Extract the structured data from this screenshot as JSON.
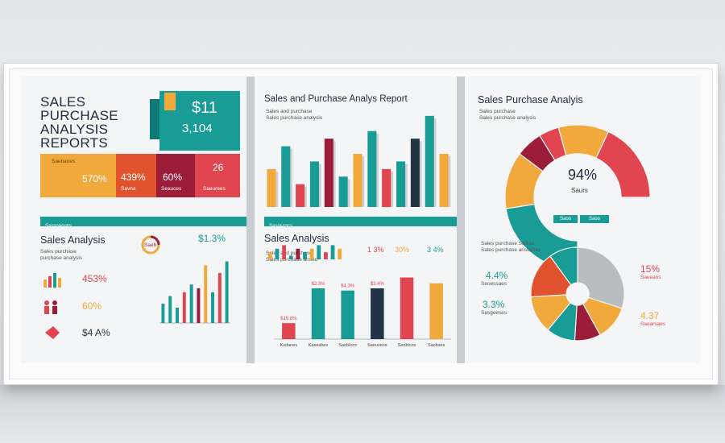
{
  "colors": {
    "teal": "#1a9c96",
    "orange": "#f2a93b",
    "red": "#e04550",
    "maroon": "#9b1d3a",
    "navy": "#243447",
    "gray": "#b9bcbf"
  },
  "panel1": {
    "title_lines": [
      "SALES",
      "PURCHASE",
      "ANALYSIS",
      "REPORTS"
    ],
    "card_big": "$11",
    "card_sub": "3,104",
    "tiles": [
      {
        "value": "570%",
        "label": "Saenaoes"
      },
      {
        "value": "439%",
        "label": "Savna"
      },
      {
        "value": "60%",
        "label": "Seauces"
      },
      {
        "value": "26",
        "label": "Saeurees"
      }
    ],
    "section_strip": "Sassoaoons",
    "sales_title": "Sales Analysis",
    "desc": "Sales purchase\npurchase analysis",
    "rows": [
      {
        "icon": "bar-chart-icon",
        "value": "453%"
      },
      {
        "icon": "people-icon",
        "value": "60%"
      },
      {
        "icon": "arrow-down-icon",
        "value": "$4 A%"
      }
    ],
    "ring_label": "$1.3%",
    "ring_inner": "Saeh"
  },
  "panel2": {
    "title": "Sales and Purchase Analys Report",
    "desc": "Sales and purchase\nSales purchase analysis",
    "strip": "Sasoscocs",
    "sales_title": "Sales Analysis",
    "legend": [
      "1 3%",
      "30%",
      "3 4%"
    ],
    "desc2": "Sales and purchase\nSales purchase ansed"
  },
  "panel3": {
    "title": "Sales Purchase Analyis",
    "desc": "Sales purchase\nSales purchase analysis",
    "gauge_value": "94%",
    "gauge_label": "Saurs",
    "tags": [
      "Saoo",
      "Saoo"
    ],
    "desc2": "Sales purchase Saleas\nSales purchase ansusoes",
    "pie_labels": [
      {
        "value": "4.4%",
        "sub": "Seoessaes"
      },
      {
        "value": "3.3%",
        "sub": "Sasgeeses"
      },
      {
        "value": "15%",
        "sub": "Saeeans"
      },
      {
        "value": "4.37",
        "sub": "Saearsaes"
      }
    ]
  },
  "chart_data": [
    {
      "type": "bar",
      "title": "",
      "series": [
        {
          "name": "",
          "values": [
            5,
            7,
            4,
            8,
            10,
            9,
            15,
            8,
            13,
            16
          ]
        }
      ],
      "colors": [
        "#1a9c96",
        "#1a9c96",
        "#1a9c96",
        "#e04550",
        "#1a9c96",
        "#9b1d3a",
        "#f2a93b",
        "#1a9c96",
        "#e04550",
        "#1a9c96"
      ],
      "ylim": [
        0,
        18
      ]
    },
    {
      "type": "bar",
      "title": "",
      "series": [
        {
          "name": "",
          "values": [
            5,
            8,
            3,
            6,
            9,
            4,
            7,
            10,
            5,
            6,
            9,
            12,
            7
          ]
        }
      ],
      "colors": [
        "#f2a93b",
        "#1a9c96",
        "#e04550",
        "#1a9c96",
        "#9b1d3a",
        "#1a9c96",
        "#f2a93b",
        "#1a9c96",
        "#e04550",
        "#1a9c96",
        "#243447",
        "#1a9c96",
        "#f2a93b"
      ],
      "ylim": [
        0,
        14
      ]
    },
    {
      "type": "bar",
      "title": "",
      "series": [
        {
          "name": "",
          "values": [
            2,
            3,
            4,
            1,
            3,
            2,
            3,
            4,
            2,
            4,
            3
          ]
        }
      ],
      "colors": [
        "#f2a93b",
        "#1a9c96",
        "#e04550",
        "#1a9c96",
        "#9b1d3a",
        "#1a9c96",
        "#f2a93b",
        "#1a9c96",
        "#e04550",
        "#1a9c96",
        "#f2a93b"
      ],
      "ylim": [
        0,
        5
      ]
    },
    {
      "type": "bar",
      "title": "",
      "categories": [
        "Ksdanes",
        "Kaseabes",
        "Saoblocs",
        "Saeuseos",
        "Seoblcos",
        "Saobses"
      ],
      "series": [
        {
          "name": "",
          "values": [
            22,
            70,
            67,
            70,
            85,
            77
          ]
        }
      ],
      "colors": [
        "#e04550",
        "#1a9c96",
        "#1a9c96",
        "#243447",
        "#e04550",
        "#f2a93b"
      ],
      "data_labels": [
        "$15.8%",
        "$2.3%",
        "$4.3%",
        "$3.4%",
        "",
        ""
      ],
      "ylim": [
        0,
        100
      ]
    },
    {
      "type": "pie",
      "title": "",
      "values": [
        30,
        17,
        8,
        6,
        15,
        24
      ],
      "colors": [
        "#1a9c96",
        "#f2a93b",
        "#9b1d3a",
        "#e04550",
        "#f2a93b",
        "#e04550"
      ]
    },
    {
      "type": "pie",
      "title": "",
      "values": [
        30,
        12,
        9,
        10,
        13,
        16,
        10
      ],
      "colors": [
        "#b9bcbf",
        "#f2a93b",
        "#9b1d3a",
        "#1a9c96",
        "#f2a93b",
        "#e0532e",
        "#1a9c96"
      ]
    }
  ]
}
